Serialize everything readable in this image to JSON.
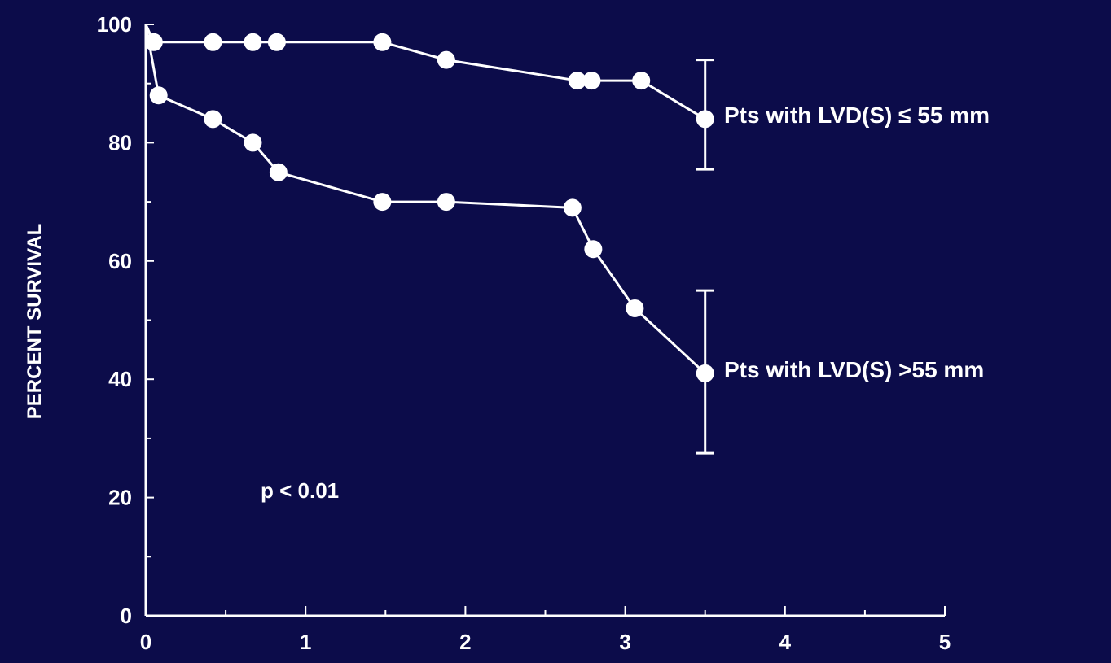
{
  "colors": {
    "background": "#0c0c4a",
    "foreground": "#ffffff"
  },
  "chart_data": {
    "type": "line",
    "title": "",
    "xlabel": "",
    "ylabel": "PERCENT SURVIVAL",
    "xlim": [
      0,
      5
    ],
    "ylim": [
      0,
      100
    ],
    "x_ticks": [
      "0",
      "1",
      "2",
      "3",
      "4",
      "5"
    ],
    "y_ticks": [
      "0",
      "20",
      "40",
      "60",
      "80",
      "100"
    ],
    "grid": false,
    "annotation": "p < 0.01",
    "series": [
      {
        "name": "Pts with LVD(S) ≤ 55 mm",
        "x": [
          0,
          0.05,
          0.42,
          0.67,
          0.82,
          1.48,
          1.88,
          2.7,
          2.79,
          3.1,
          3.5
        ],
        "y": [
          100,
          97,
          97,
          97,
          97,
          97,
          94,
          90.5,
          90.5,
          90.5,
          84
        ],
        "error_bar": {
          "x": 3.5,
          "low": 75.5,
          "high": 94
        }
      },
      {
        "name": "Pts with LVD(S) >55 mm",
        "x": [
          0,
          0.08,
          0.42,
          0.67,
          0.83,
          1.48,
          1.88,
          2.67,
          2.8,
          3.06,
          3.5
        ],
        "y": [
          100,
          88,
          84,
          80,
          75,
          70,
          70,
          69,
          62,
          52,
          41
        ],
        "error_bar": {
          "x": 3.5,
          "low": 27.5,
          "high": 55
        }
      }
    ]
  }
}
